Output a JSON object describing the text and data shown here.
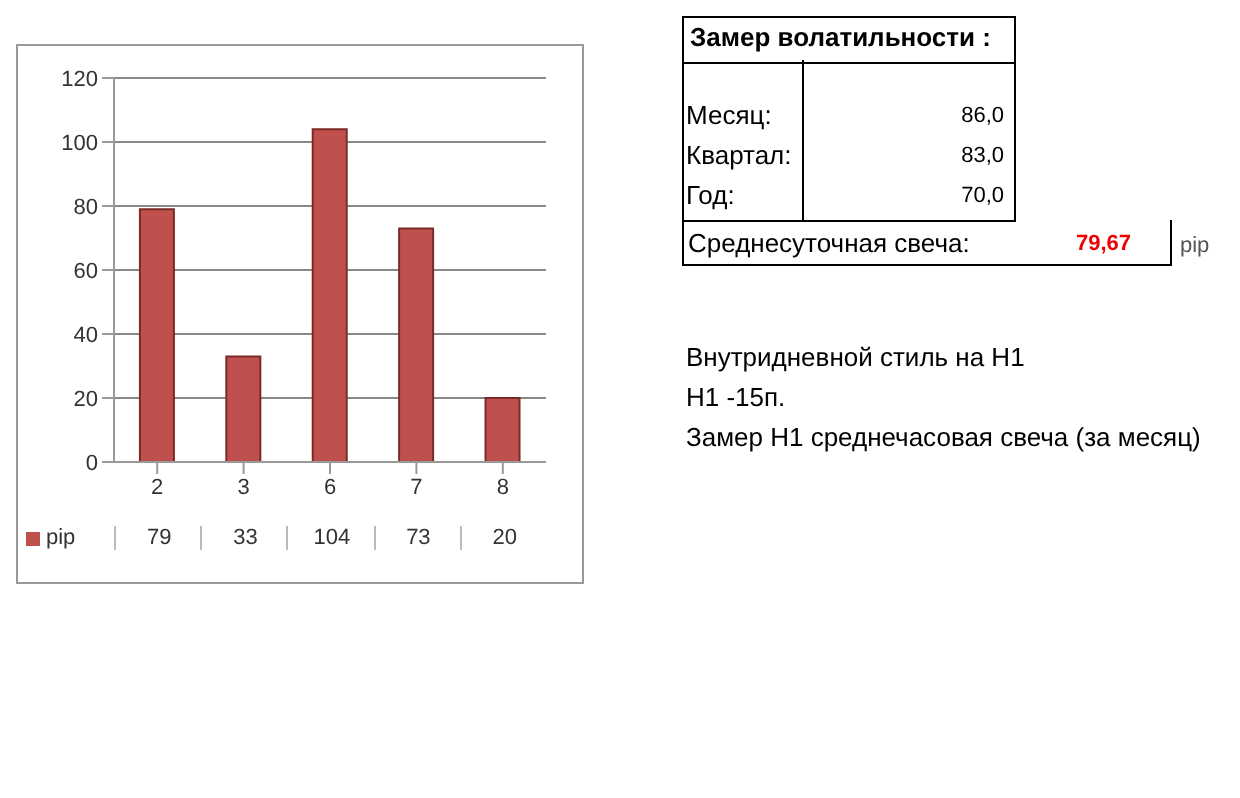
{
  "chart_data": {
    "type": "bar",
    "categories": [
      "2",
      "3",
      "6",
      "7",
      "8"
    ],
    "series": [
      {
        "name": "pip",
        "color": "#c0504d",
        "values": [
          79,
          33,
          104,
          73,
          20
        ]
      }
    ],
    "ylim": [
      0,
      120
    ],
    "yticks": [
      0,
      20,
      40,
      60,
      80,
      100,
      120
    ],
    "grid": "y",
    "legend": "bottom",
    "data_labels": true,
    "annotations": [
      "Замер  волатильности  :",
      "Месяц:",
      "86,0",
      "Квартал:",
      "83,0",
      "Год:",
      "70,0",
      "Среднесуточная свеча:",
      "79,67",
      "pip",
      "Внутридневной стиль на H1",
      "H1 -15п.",
      "Замер H1 среднечасовая свеча (за месяц)"
    ]
  }
}
